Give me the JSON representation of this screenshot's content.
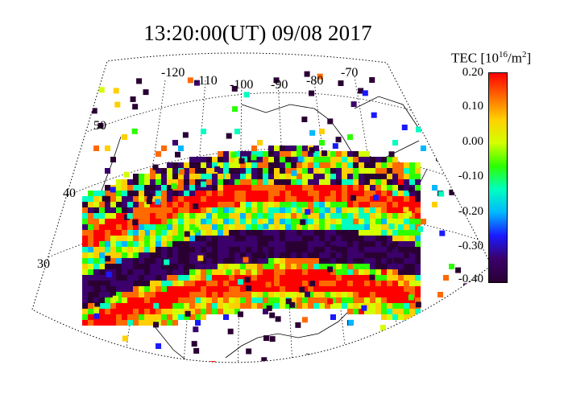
{
  "title": "13:20:00(UT)  09/08 2017",
  "map": {
    "longitude_labels": [
      "-120",
      "-110",
      "-100",
      "-90",
      "-80",
      "-70"
    ],
    "latitude_labels": [
      "50",
      "40",
      "30"
    ]
  },
  "colorbar": {
    "title_main": "TEC [10",
    "title_exp": "16",
    "title_unit": "/m",
    "title_exp2": "2",
    "title_close": "]",
    "ticks": [
      "0.20",
      "0.10",
      "0.00",
      "-0.10",
      "-0.20",
      "-0.30",
      "-0.40"
    ],
    "range": [
      -0.4,
      0.2
    ],
    "colors": [
      "#2a0033",
      "#3b006b",
      "#1a1aff",
      "#00b8ff",
      "#00ffc0",
      "#2cff00",
      "#d4ff00",
      "#ffd000",
      "#ff6a00",
      "#ff0000"
    ]
  }
}
